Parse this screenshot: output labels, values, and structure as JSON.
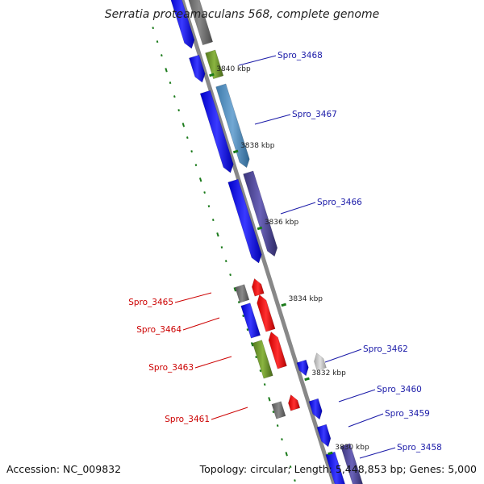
{
  "title": "Serratia proteamaculans 568, complete genome",
  "footer": {
    "accession": "Accession: NC_009832",
    "summary": "Topology: circular; Length: 5,448,853 bp; Genes: 5,000"
  },
  "colors": {
    "label_forward": "#1a1aa8",
    "label_reverse": "#cc0000",
    "backbone": "#888888",
    "gc_skew": "#1a7a1a"
  },
  "ticks": [
    {
      "label": "3840 kbp"
    },
    {
      "label": "3838 kbp"
    },
    {
      "label": "3836 kbp"
    },
    {
      "label": "3834 kbp"
    },
    {
      "label": "3832 kbp"
    },
    {
      "label": "3830 kbp"
    }
  ],
  "gene_labels_right": [
    {
      "label": "Spro_3468"
    },
    {
      "label": "Spro_3467"
    },
    {
      "label": "Spro_3466"
    },
    {
      "label": "Spro_3462"
    },
    {
      "label": "Spro_3460"
    },
    {
      "label": "Spro_3459"
    },
    {
      "label": "Spro_3458"
    }
  ],
  "gene_labels_left": [
    {
      "label": "Spro_3465"
    },
    {
      "label": "Spro_3464"
    },
    {
      "label": "Spro_3463"
    },
    {
      "label": "Spro_3461"
    }
  ]
}
